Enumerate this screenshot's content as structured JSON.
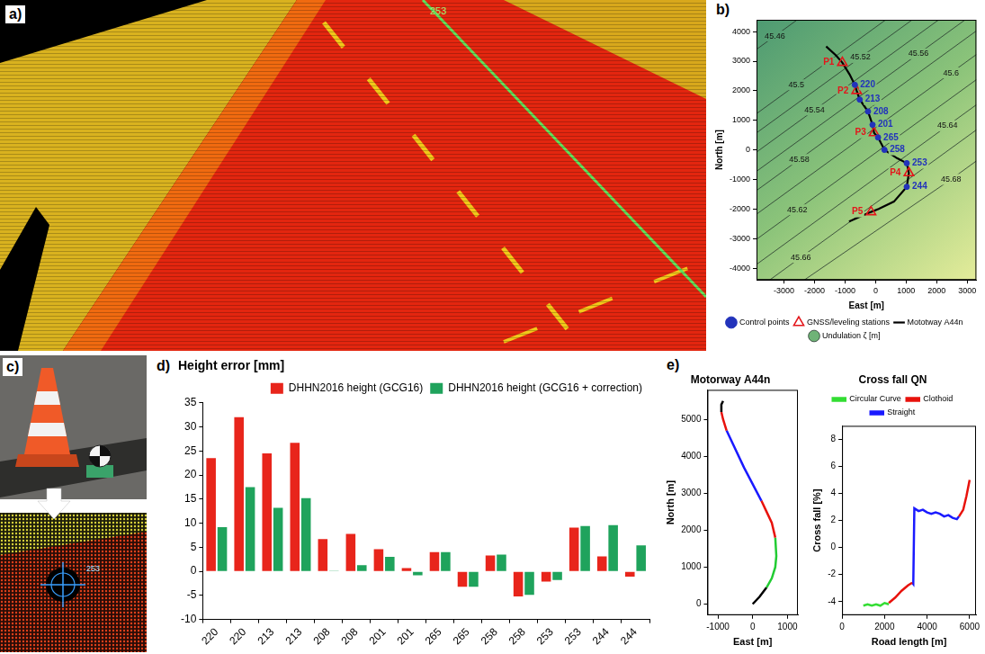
{
  "panel_a": {
    "panel_label": "a)",
    "annotation": "253"
  },
  "panel_c": {
    "panel_label": "c)",
    "annotation": "253"
  },
  "chart_data": [
    {
      "panel_label": "b)",
      "type": "scatter",
      "x_label": "East [m]",
      "y_label": "North [m]",
      "xlim": [
        -3900,
        3300
      ],
      "xticks": [
        -3000,
        -2000,
        -1000,
        0,
        1000,
        2000,
        3000
      ],
      "ylim": [
        -4400,
        4400
      ],
      "yticks": [
        -4000,
        -3000,
        -2000,
        -1000,
        0,
        1000,
        2000,
        3000,
        4000
      ],
      "grid": false,
      "legend": "bottom",
      "series": [
        {
          "name": "Undulation ζ [m]",
          "type": "contour",
          "color": "#6fb377",
          "contours": [
            {
              "level": 45.46,
              "x": [
                -3900,
                -3300,
                -2600
              ],
              "y": [
                3400,
                3850,
                4375
              ]
            },
            {
              "level": 45.5,
              "x": [
                -3900,
                -2600,
                333
              ],
              "y": [
                1225,
                2200,
                4400
              ]
            },
            {
              "level": 45.52,
              "x": [
                -3900,
                -500,
                1200
              ],
              "y": [
                575,
                3125,
                4400
              ]
            },
            {
              "level": 45.54,
              "x": [
                -3900,
                -2000,
                2067
              ],
              "y": [
                -75,
                1350,
                4400
              ]
            },
            {
              "level": 45.56,
              "x": [
                -3900,
                1400,
                2933
              ],
              "y": [
                -725,
                3250,
                4400
              ]
            },
            {
              "level": 45.58,
              "x": [
                -3900,
                -2500,
                3300
              ],
              "y": [
                -1375,
                -325,
                4025
              ]
            },
            {
              "level": 45.6,
              "x": [
                -3900,
                2470,
                3300
              ],
              "y": [
                -2175,
                2603,
                3225
              ]
            },
            {
              "level": 45.62,
              "x": [
                -3900,
                -2570,
                3300
              ],
              "y": [
                -3025,
                -2028,
                2375
              ]
            },
            {
              "level": 45.64,
              "x": [
                -3900,
                2350,
                3300
              ],
              "y": [
                -3875,
                813,
                1525
              ]
            },
            {
              "level": 45.66,
              "x": [
                -3467,
                -2450,
                3300
              ],
              "y": [
                -4400,
                -3637,
                675
              ]
            },
            {
              "level": 45.68,
              "x": [
                -2333,
                2470,
                3300
              ],
              "y": [
                -4400,
                -998,
                -375
              ]
            }
          ]
        },
        {
          "name": "Mototway A44n",
          "type": "line",
          "color": "#000000",
          "line_style": "solid",
          "x": [
            -1620,
            -1300,
            -1090,
            -850,
            -680,
            -620,
            -520,
            -250,
            -100,
            -50,
            80,
            290,
            700,
            1020,
            1090,
            1020,
            600,
            100,
            -150,
            -870
          ],
          "y": [
            3500,
            3200,
            2950,
            2550,
            2200,
            2000,
            1700,
            1300,
            850,
            575,
            420,
            0,
            -280,
            -450,
            -780,
            -1250,
            -1750,
            -2000,
            -2100,
            -2425
          ]
        },
        {
          "name": "Control points",
          "type": "scatter",
          "marker": "circle",
          "color": "#2233bb",
          "x": [
            -680,
            -520,
            -250,
            -100,
            80,
            290,
            1020,
            1020
          ],
          "y": [
            2200,
            1700,
            1300,
            850,
            420,
            0,
            -450,
            -1250
          ],
          "point_labels": [
            "220",
            "213",
            "208",
            "201",
            "265",
            "258",
            "253",
            "244"
          ]
        },
        {
          "name": "GNSS/leveling stations",
          "type": "scatter",
          "marker": "triangle",
          "color": "#e3161b",
          "x": [
            -1090,
            -620,
            -50,
            1090,
            -150
          ],
          "y": [
            2950,
            2000,
            575,
            -780,
            -2100
          ],
          "point_labels": [
            "P1",
            "P2",
            "P3",
            "P4",
            "P5"
          ]
        }
      ]
    },
    {
      "panel_label": "d)",
      "type": "bar",
      "title": "Height error [mm]",
      "categories": [
        "220",
        "220",
        "213",
        "213",
        "208",
        "208",
        "201",
        "201",
        "265",
        "265",
        "258",
        "258",
        "253",
        "253",
        "244",
        "244"
      ],
      "ylim": [
        -10,
        35
      ],
      "yticks": [
        -10,
        -5,
        0,
        5,
        10,
        15,
        20,
        25,
        30,
        35
      ],
      "grid": false,
      "legend": "top",
      "series": [
        {
          "name": "DHHN2016 height (GCG16)",
          "color": "#e8251b",
          "values": [
            23.5,
            32,
            24.5,
            26.7,
            6.7,
            7.8,
            4.6,
            0.7,
            4,
            -3.2,
            3.3,
            -5.2,
            -2.1,
            9.1,
            3.1,
            -1.1
          ]
        },
        {
          "name": "DHHN2016 height (GCG16 + correction)",
          "color": "#1fa35c",
          "values": [
            9.2,
            17.5,
            13.2,
            15.2,
            0.1,
            1.3,
            3,
            -0.8,
            4,
            -3.2,
            3.5,
            -4.9,
            -1.8,
            9.4,
            9.6,
            5.4
          ]
        }
      ]
    },
    {
      "panel_label": "e)",
      "type": "line",
      "title": "Motorway A44n",
      "x_label": "East [m]",
      "y_label": "North [m]",
      "xlim": [
        -1300,
        1300
      ],
      "xticks": [
        -1000,
        0,
        1000
      ],
      "ylim": [
        -300,
        5800
      ],
      "yticks": [
        0,
        1000,
        2000,
        3000,
        4000,
        5000
      ],
      "grid": false,
      "series": [
        {
          "x": [
            0,
            200,
            400,
            550,
            650,
            680,
            650,
            550,
            400,
            250,
            -250,
            -750,
            -850,
            -900,
            -900,
            -850
          ],
          "y": [
            0,
            200,
            450,
            700,
            1000,
            1300,
            1800,
            2200,
            2500,
            2800,
            3700,
            4700,
            5000,
            5200,
            5400,
            5500
          ],
          "colors": [
            "#000000",
            "#000000",
            "#22cc33",
            "#22cc33",
            "#22cc33",
            "#22cc33",
            "#e8120c",
            "#e8120c",
            "#e8120c",
            "#1a1aff",
            "#1a1aff",
            "#e8120c",
            "#e8120c",
            "#000000",
            "#000000"
          ]
        }
      ]
    },
    {
      "type": "line",
      "title": "Cross fall QN",
      "x_label": "Road length [m]",
      "y_label": "Cross fall [%]",
      "xlim": [
        0,
        6300
      ],
      "xticks": [
        0,
        2000,
        4000,
        6000
      ],
      "ylim": [
        -5,
        9
      ],
      "yticks": [
        -4,
        -2,
        0,
        2,
        4,
        6,
        8
      ],
      "grid": false,
      "legend": "top",
      "series": [
        {
          "name": "Circular Curve",
          "color": "#33dd33",
          "x": [
            1000,
            1200,
            1400,
            1600,
            1800,
            2000,
            2200
          ],
          "y": [
            -4.3,
            -4.2,
            -4.3,
            -4.2,
            -4.3,
            -4.1,
            -4.2
          ]
        },
        {
          "name": "Clothoid",
          "color": "#e8120c",
          "x": [
            2200,
            2500,
            2800,
            3100,
            3300,
            4400,
            5500,
            5700,
            5850,
            6000
          ],
          "y": [
            -4.1,
            -3.7,
            -3.2,
            -2.8,
            -2.6,
            null,
            2.3,
            2.8,
            3.8,
            5.0
          ]
        },
        {
          "name": "Straight",
          "color": "#1a1aff",
          "x": [
            3300,
            3350,
            3400,
            3600,
            3800,
            4000,
            4200,
            4400,
            4600,
            4800,
            5000,
            5200,
            5400,
            5500
          ],
          "y": [
            -2.6,
            -2.7,
            2.9,
            2.7,
            2.8,
            2.6,
            2.5,
            2.6,
            2.5,
            2.3,
            2.4,
            2.2,
            2.1,
            2.3
          ]
        }
      ]
    }
  ]
}
